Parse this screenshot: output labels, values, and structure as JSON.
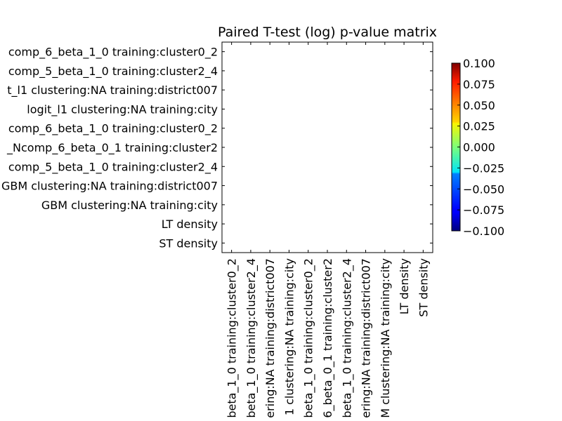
{
  "chart_data": {
    "type": "heatmap",
    "title": "Paired T-test (log) p-value matrix",
    "xlabel": "",
    "ylabel": "",
    "row_labels": [
      "comp_6_beta_1_0 training:cluster0_2",
      "comp_5_beta_1_0 training:cluster2_4",
      "t_l1 clustering:NA training:district007",
      "logit_l1 clustering:NA training:city",
      "comp_6_beta_1_0 training:cluster0_2",
      "_Ncomp_6_beta_0_1 training:cluster2",
      "comp_5_beta_1_0 training:cluster2_4",
      "GBM clustering:NA training:district007",
      "GBM clustering:NA training:city",
      "LT density",
      "ST density"
    ],
    "col_labels": [
      "beta_1_0 training:cluster0_2",
      "beta_1_0 training:cluster2_4",
      "ering:NA training:district007",
      "1 clustering:NA training:city",
      "beta_1_0 training:cluster0_2",
      "6_beta_0_1 training:cluster2",
      "beta_1_0 training:cluster2_4",
      "ering:NA training:district007",
      "M clustering:NA training:city",
      "LT density",
      "ST density"
    ],
    "values": [],
    "colorbar": {
      "colormap": "jet",
      "range": [
        -0.1,
        0.1
      ],
      "ticks": [
        "0.100",
        "0.075",
        "0.050",
        "0.025",
        "0.000",
        "−0.025",
        "−0.050",
        "−0.075",
        "−0.100"
      ]
    },
    "grid": false
  }
}
